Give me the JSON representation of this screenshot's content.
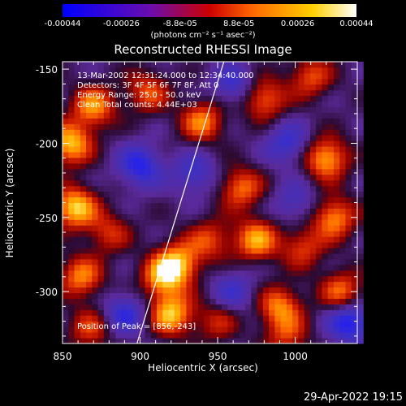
{
  "colorbar": {
    "ticks": [
      "-0.00044",
      "-0.00026",
      "-8.8e-05",
      "8.8e-05",
      "0.00026",
      "0.00044"
    ],
    "units": "(photons cm⁻² s⁻¹ asec⁻²)",
    "colors": [
      "#0000ff",
      "#8a2be2",
      "#ff0000",
      "#ff8c00",
      "#ffd700",
      "#ffffff"
    ]
  },
  "info_lines": [
    "13-Mar-2002 12:31:24.000 to 12:34:40.000",
    "Detectors: 3F 4F 5F 6F 7F 8F, Att 0",
    "Energy Range: 25.0 - 50.0 keV",
    "Clean     Total counts: 4.44E+03"
  ],
  "peak_text": "Position of Peak = [856,-243]",
  "footer_date": "29-Apr-2022 19:15",
  "chart_data": {
    "type": "heatmap",
    "title": "Reconstructed RHESSI Image",
    "xlabel": "Heliocentric X (arcsec)",
    "ylabel": "Heliocentric Y (arcsec)",
    "xlim": [
      850,
      1040
    ],
    "ylim": [
      -335,
      -145
    ],
    "xticks": [
      850,
      900,
      950,
      1000
    ],
    "yticks": [
      -150,
      -200,
      -250,
      -300
    ],
    "colorscale": [
      "#1010ff",
      "#5a2db8",
      "#3a1f6a",
      "#000000",
      "#a00000",
      "#ff3b00",
      "#ff9a00",
      "#ffe040",
      "#ffffff"
    ],
    "limb_line": {
      "x": [
        898,
        954
      ],
      "y": [
        -335,
        -145
      ]
    },
    "peak": [
      856,
      -243
    ],
    "blobs": [
      {
        "x": 855,
        "y": -200,
        "v": 0.95
      },
      {
        "x": 858,
        "y": -243,
        "v": 1.0
      },
      {
        "x": 870,
        "y": -175,
        "v": 0.8
      },
      {
        "x": 862,
        "y": -290,
        "v": 0.75
      },
      {
        "x": 868,
        "y": -325,
        "v": 0.55
      },
      {
        "x": 880,
        "y": -260,
        "v": 0.5
      },
      {
        "x": 905,
        "y": -165,
        "v": 0.6
      },
      {
        "x": 915,
        "y": -290,
        "v": 0.85
      },
      {
        "x": 920,
        "y": -315,
        "v": 0.95
      },
      {
        "x": 925,
        "y": -280,
        "v": 0.8
      },
      {
        "x": 940,
        "y": -185,
        "v": 0.75
      },
      {
        "x": 945,
        "y": -265,
        "v": 0.55
      },
      {
        "x": 965,
        "y": -230,
        "v": 0.7
      },
      {
        "x": 975,
        "y": -265,
        "v": 0.85
      },
      {
        "x": 980,
        "y": -170,
        "v": 0.7
      },
      {
        "x": 990,
        "y": -310,
        "v": 0.75
      },
      {
        "x": 1005,
        "y": -270,
        "v": 0.55
      },
      {
        "x": 1010,
        "y": -155,
        "v": 0.6
      },
      {
        "x": 1020,
        "y": -210,
        "v": 0.9
      },
      {
        "x": 1025,
        "y": -250,
        "v": 0.8
      },
      {
        "x": 1030,
        "y": -300,
        "v": 0.7
      },
      {
        "x": 995,
        "y": -330,
        "v": 0.5
      },
      {
        "x": 950,
        "y": -320,
        "v": 0.45
      },
      {
        "x": 900,
        "y": -215,
        "v": -0.7
      },
      {
        "x": 890,
        "y": -315,
        "v": -0.6
      },
      {
        "x": 935,
        "y": -220,
        "v": -0.5
      },
      {
        "x": 960,
        "y": -300,
        "v": -0.45
      },
      {
        "x": 995,
        "y": -200,
        "v": -0.55
      },
      {
        "x": 1035,
        "y": -320,
        "v": -0.8
      },
      {
        "x": 1000,
        "y": -240,
        "v": -0.4
      },
      {
        "x": 960,
        "y": -160,
        "v": -0.5
      }
    ]
  }
}
